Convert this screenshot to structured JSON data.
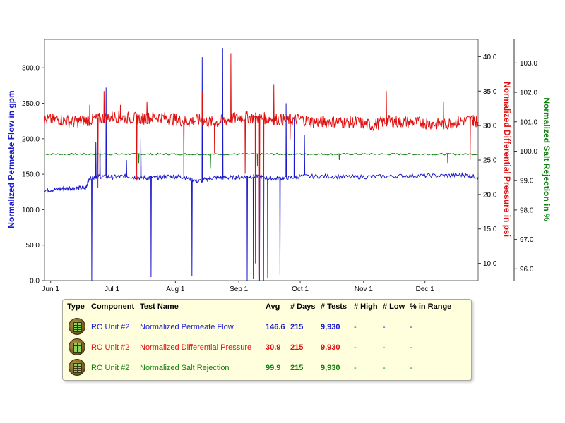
{
  "chart_data": {
    "type": "line",
    "x_tick_labels": [
      "Jun 1",
      "Jul 1",
      "Aug 1",
      "Sep 1",
      "Oct 1",
      "Nov 1",
      "Dec 1"
    ],
    "x_tick_dates": [
      "2000-06-01",
      "2000-07-01",
      "2000-08-01",
      "2000-09-01",
      "2000-10-01",
      "2000-11-01",
      "2000-12-01"
    ],
    "x_range": [
      "2000-05-29",
      "2000-12-27"
    ],
    "grid": false,
    "axes": [
      {
        "id": "flow",
        "side": "left",
        "label": "Normalized Permeate Flow in gpm",
        "range": [
          0,
          340
        ],
        "ticks": [
          "0.0",
          "50.0",
          "100.0",
          "150.0",
          "200.0",
          "250.0",
          "300.0"
        ],
        "tick_values": [
          0,
          50,
          100,
          150,
          200,
          250,
          300
        ],
        "color": "#1a1acc"
      },
      {
        "id": "pressure",
        "side": "right",
        "label": "Normalized Differential Pressure in psi",
        "range": [
          7.5,
          42.5
        ],
        "ticks": [
          "10.0",
          "15.0",
          "20.0",
          "25.0",
          "30.0",
          "35.0",
          "40.0"
        ],
        "tick_values": [
          10,
          15,
          20,
          25,
          30,
          35,
          40
        ],
        "color": "#e01010"
      },
      {
        "id": "salt",
        "side": "right-outer",
        "label": "Normalized Salt Rejection in %",
        "range": [
          95.6,
          103.8
        ],
        "ticks": [
          "96.0",
          "97.0",
          "98.0",
          "99.0",
          "100.0",
          "101.0",
          "102.0",
          "103.0"
        ],
        "tick_values": [
          96,
          97,
          98,
          99,
          100,
          101,
          102,
          103
        ],
        "color": "#108010"
      }
    ],
    "series": [
      {
        "name": "Normalized Permeate Flow",
        "axis": "flow",
        "color": "#1a1acc",
        "x": [
          "2000-05-29",
          "2000-06-05",
          "2000-06-12",
          "2000-06-18",
          "2000-06-20",
          "2000-06-24",
          "2000-07-01",
          "2000-07-08",
          "2000-07-15",
          "2000-07-22",
          "2000-07-29",
          "2000-08-05",
          "2000-08-12",
          "2000-08-19",
          "2000-08-26",
          "2000-09-02",
          "2000-09-09",
          "2000-09-16",
          "2000-09-23",
          "2000-10-01",
          "2000-10-15",
          "2000-10-29",
          "2000-11-12",
          "2000-11-26",
          "2000-12-10",
          "2000-12-20",
          "2000-12-27"
        ],
        "y": [
          127,
          129,
          131,
          130,
          144,
          147,
          146,
          147,
          145,
          145,
          147,
          146,
          140,
          145,
          145,
          146,
          147,
          144,
          144,
          147,
          147,
          146,
          147,
          148,
          148,
          149,
          146
        ],
        "spikes": [
          {
            "x": "2000-06-21",
            "y": 0
          },
          {
            "x": "2000-06-23",
            "y": 195
          },
          {
            "x": "2000-06-25",
            "y": 192
          },
          {
            "x": "2000-06-28",
            "y": 272
          },
          {
            "x": "2000-07-08",
            "y": 170
          },
          {
            "x": "2000-07-15",
            "y": 200
          },
          {
            "x": "2000-07-20",
            "y": 5
          },
          {
            "x": "2000-08-09",
            "y": 7
          },
          {
            "x": "2000-08-14",
            "y": 315
          },
          {
            "x": "2000-08-24",
            "y": 328
          },
          {
            "x": "2000-09-05",
            "y": 0
          },
          {
            "x": "2000-09-08",
            "y": 2
          },
          {
            "x": "2000-09-11",
            "y": 0
          },
          {
            "x": "2000-09-13",
            "y": 0
          },
          {
            "x": "2000-09-15",
            "y": 3
          },
          {
            "x": "2000-09-21",
            "y": 8
          },
          {
            "x": "2000-09-24",
            "y": 250
          },
          {
            "x": "2000-09-28",
            "y": 230
          },
          {
            "x": "2000-10-03",
            "y": 205
          }
        ]
      },
      {
        "name": "Normalized Differential Pressure",
        "axis": "pressure",
        "color": "#e01010",
        "x": [
          "2000-05-29",
          "2000-06-05",
          "2000-06-12",
          "2000-06-18",
          "2000-06-25",
          "2000-07-02",
          "2000-07-09",
          "2000-07-16",
          "2000-07-23",
          "2000-07-30",
          "2000-08-06",
          "2000-08-13",
          "2000-08-20",
          "2000-08-27",
          "2000-09-03",
          "2000-09-10",
          "2000-09-17",
          "2000-09-24",
          "2000-10-01",
          "2000-10-08",
          "2000-10-15",
          "2000-10-22",
          "2000-10-29",
          "2000-11-05",
          "2000-11-12",
          "2000-11-19",
          "2000-11-26",
          "2000-12-03",
          "2000-12-10",
          "2000-12-17",
          "2000-12-24",
          "2000-12-27"
        ],
        "y": [
          30.8,
          30.9,
          30.5,
          30.8,
          31.0,
          31.3,
          31.1,
          31.0,
          31.3,
          31.0,
          30.6,
          30.8,
          30.4,
          30.9,
          31.3,
          31.1,
          31.0,
          30.8,
          30.9,
          30.5,
          30.6,
          30.5,
          30.5,
          30.0,
          30.7,
          30.5,
          30.5,
          30.3,
          30.2,
          30.6,
          30.8,
          30.6
        ],
        "spikes": [
          {
            "x": "2000-06-20",
            "y": 33.0
          },
          {
            "x": "2000-06-24",
            "y": 21.0
          },
          {
            "x": "2000-06-27",
            "y": 35.0
          },
          {
            "x": "2000-07-05",
            "y": 33.0
          },
          {
            "x": "2000-07-13",
            "y": 22.0
          },
          {
            "x": "2000-07-18",
            "y": 33.5
          },
          {
            "x": "2000-08-05",
            "y": 22.5
          },
          {
            "x": "2000-08-14",
            "y": 35.0
          },
          {
            "x": "2000-08-20",
            "y": 26.0
          },
          {
            "x": "2000-08-28",
            "y": 40.5
          },
          {
            "x": "2000-09-04",
            "y": 23.0
          },
          {
            "x": "2000-09-09",
            "y": 10.0
          },
          {
            "x": "2000-09-11",
            "y": 8.0
          },
          {
            "x": "2000-09-13",
            "y": 8.5
          },
          {
            "x": "2000-09-18",
            "y": 36.0
          },
          {
            "x": "2000-09-26",
            "y": 28.0
          },
          {
            "x": "2000-11-12",
            "y": 35.0
          },
          {
            "x": "2000-12-10",
            "y": 33.5
          },
          {
            "x": "2000-12-23",
            "y": 25.0
          }
        ]
      },
      {
        "name": "Normalized Salt Rejection",
        "axis": "salt",
        "color": "#108010",
        "x": [
          "2000-05-29",
          "2000-06-12",
          "2000-06-26",
          "2000-07-10",
          "2000-07-24",
          "2000-08-07",
          "2000-08-21",
          "2000-09-04",
          "2000-09-18",
          "2000-10-01",
          "2000-10-15",
          "2000-10-29",
          "2000-11-12",
          "2000-11-26",
          "2000-12-10",
          "2000-12-27"
        ],
        "y": [
          99.9,
          99.9,
          99.9,
          99.9,
          99.9,
          99.9,
          99.9,
          99.9,
          99.9,
          99.9,
          99.9,
          99.9,
          99.9,
          99.9,
          99.9,
          99.9
        ],
        "spikes": [
          {
            "x": "2000-06-25",
            "y": 99.5
          },
          {
            "x": "2000-07-14",
            "y": 99.6
          },
          {
            "x": "2000-08-18",
            "y": 99.4
          },
          {
            "x": "2000-09-10",
            "y": 99.5
          },
          {
            "x": "2000-10-20",
            "y": 99.7
          },
          {
            "x": "2000-12-12",
            "y": 99.6
          }
        ]
      }
    ]
  },
  "legend": {
    "headers": {
      "type": "Type",
      "component": "Component",
      "test_name": "Test Name",
      "avg": "Avg",
      "days": "# Days",
      "tests": "# Tests",
      "high": "# High",
      "low": "# Low",
      "in_range": "% in Range"
    },
    "rows": [
      {
        "icon": "table-icon",
        "component": "RO Unit #2",
        "test_name": "Normalized Permeate Flow",
        "avg": "146.6",
        "days": "215",
        "tests": "9,930",
        "high": "-",
        "low": "-",
        "in_range": "-",
        "color": "#1a1acc"
      },
      {
        "icon": "table-icon",
        "component": "RO Unit #2",
        "test_name": "Normalized Differential Pressure",
        "avg": "30.9",
        "days": "215",
        "tests": "9,930",
        "high": "-",
        "low": "-",
        "in_range": "-",
        "color": "#e01010"
      },
      {
        "icon": "table-icon",
        "component": "RO Unit #2",
        "test_name": "Normalized Salt Rejection",
        "avg": "99.9",
        "days": "215",
        "tests": "9,930",
        "high": "-",
        "low": "-",
        "in_range": "-",
        "color": "#108010"
      }
    ]
  }
}
